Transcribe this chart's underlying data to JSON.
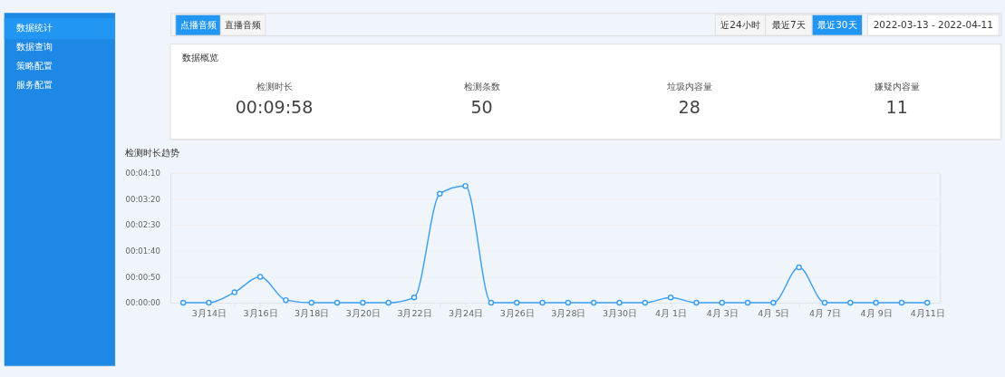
{
  "chart_data": [
    {
      "type": "other",
      "annotations": [
        "数据统计",
        "数据查询",
        "策略配置",
        "服务配置",
        "点播音频",
        "直播音频",
        "近24小时",
        "最近7天",
        "最近30天",
        "2022-03-13 - 2022-04-11"
      ]
    },
    {
      "type": "other",
      "title": "数据概览",
      "annotations": [
        "检测时长",
        "00:09:58",
        "检测条数",
        "50",
        "垃圾内容量",
        "28",
        "嫌疑内容量",
        "11"
      ]
    },
    {
      "type": "line",
      "title": "检测时长趋势",
      "categories": [
        null,
        "3月14日",
        null,
        "3月16日",
        null,
        "3月18日",
        null,
        "3月20日",
        null,
        "3月22日",
        null,
        "3月24日",
        null,
        "3月26日",
        null,
        "3月28日",
        null,
        "3月30日",
        null,
        "4月 1日",
        null,
        "4月 3日",
        null,
        "4月 5日",
        null,
        "4月 7日",
        null,
        "4月 9日",
        null,
        "4月11日"
      ],
      "series": [
        {
          "color": "#3ba0f5",
          "values": [
            0,
            0,
            20,
            50,
            5,
            0,
            0,
            0,
            0,
            10,
            210,
            225,
            0,
            0,
            0,
            0,
            0,
            0,
            0,
            10,
            0,
            0,
            0,
            0,
            68,
            0,
            0,
            0,
            0,
            0
          ]
        }
      ],
      "ylim": [
        0,
        250
      ],
      "yticks": [
        {
          "value": 0,
          "label": "00:00:00"
        },
        {
          "value": 50,
          "label": "00:00:50"
        },
        {
          "value": 100,
          "label": "00:01:40"
        },
        {
          "value": 150,
          "label": "00:02:30"
        },
        {
          "value": 200,
          "label": "00:03:20"
        },
        {
          "value": 250,
          "label": "00:04:10"
        }
      ],
      "grid": "y",
      "marker": "circle",
      "line_style": "solid"
    }
  ]
}
